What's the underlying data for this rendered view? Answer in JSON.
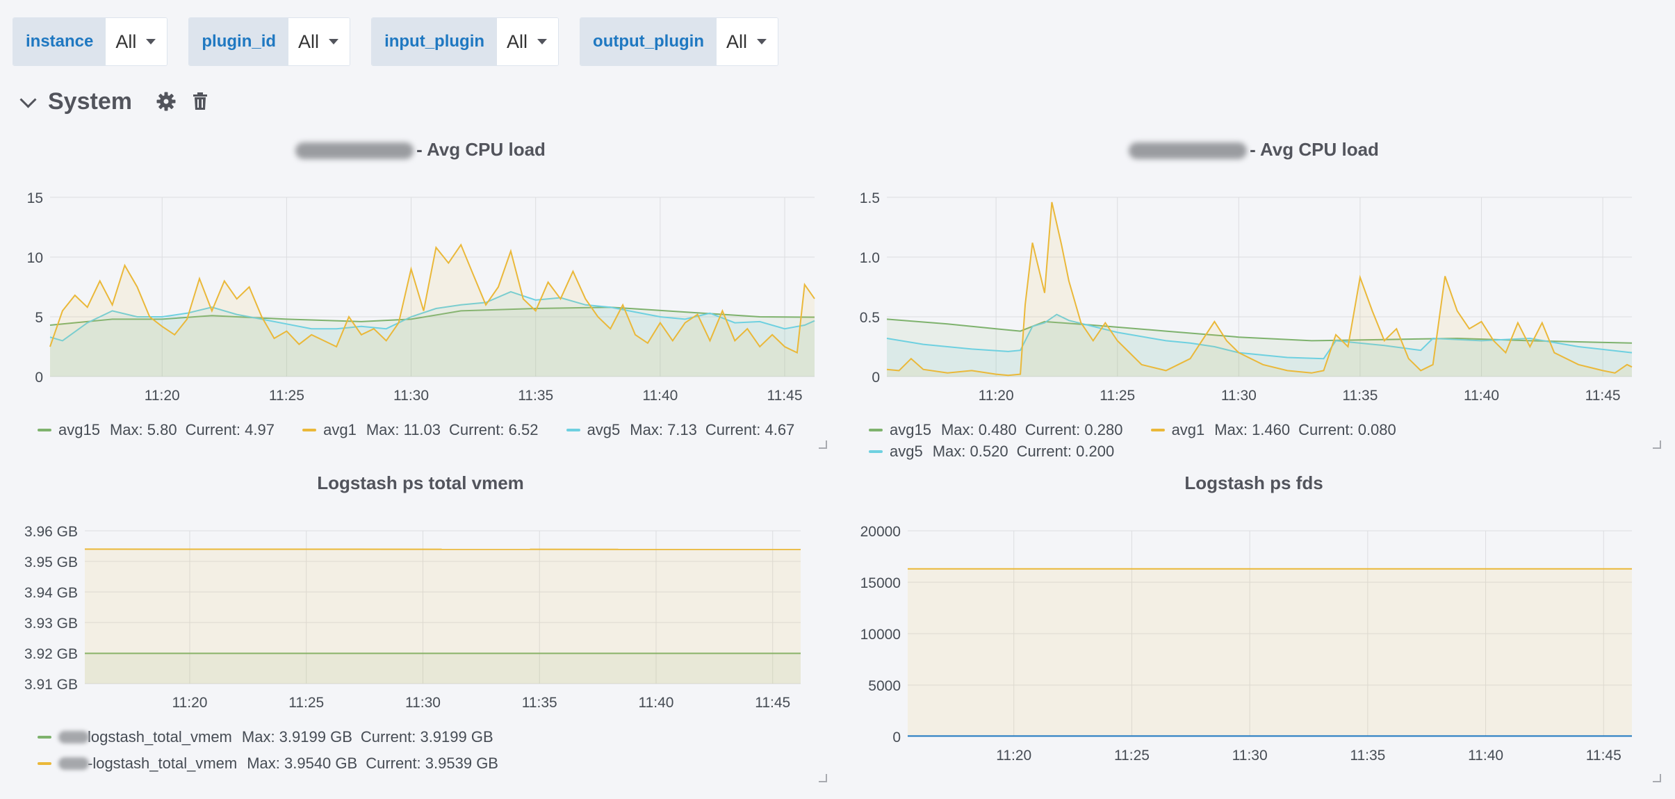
{
  "variables": [
    {
      "label": "instance",
      "value": "All"
    },
    {
      "label": "plugin_id",
      "value": "All"
    },
    {
      "label": "input_plugin",
      "value": "All"
    },
    {
      "label": "output_plugin",
      "value": "All"
    }
  ],
  "row": {
    "title": "System"
  },
  "icons": {
    "collapse": "chevron-down-icon",
    "settings": "gear-icon",
    "delete": "trash-icon"
  },
  "colors": {
    "green": "#7eb26d",
    "yellow": "#eab839",
    "cyan": "#6ed0e0",
    "blue": "#1f78c1"
  },
  "panels": [
    {
      "title": "- Avg CPU load",
      "legend": [
        {
          "name": "avg15",
          "max": "Max: 5.80",
          "current": "Current: 4.97"
        },
        {
          "name": "avg1",
          "max": "Max: 11.03",
          "current": "Current: 6.52"
        },
        {
          "name": "avg5",
          "max": "Max: 7.13",
          "current": "Current: 4.67"
        }
      ]
    },
    {
      "title": "- Avg CPU load",
      "legend": [
        {
          "name": "avg15",
          "max": "Max: 0.480",
          "current": "Current: 0.280"
        },
        {
          "name": "avg1",
          "max": "Max: 1.460",
          "current": "Current: 0.080"
        },
        {
          "name": "avg5",
          "max": "Max: 0.520",
          "current": "Current: 0.200"
        }
      ]
    },
    {
      "title": "Logstash ps total vmem",
      "legend": [
        {
          "name": "logstash_total_vmem",
          "max": "Max: 3.9199 GB",
          "current": "Current: 3.9199 GB"
        },
        {
          "name": "-logstash_total_vmem",
          "max": "Max: 3.9540 GB",
          "current": "Current: 3.9539 GB"
        }
      ]
    },
    {
      "title": "Logstash ps fds",
      "legend": []
    }
  ],
  "chart_data": [
    {
      "type": "area",
      "title": "- Avg CPU load",
      "x_ticks": [
        "11:20",
        "11:25",
        "11:30",
        "11:35",
        "11:40",
        "11:45"
      ],
      "y_ticks": [
        "0",
        "5",
        "10",
        "15"
      ],
      "ylim": [
        0,
        15
      ],
      "xlim_minutes": [
        15.5,
        46.2
      ],
      "series": [
        {
          "name": "avg15",
          "color": "#7eb26d",
          "points": [
            [
              15.5,
              4.3
            ],
            [
              18,
              4.8
            ],
            [
              20,
              4.8
            ],
            [
              22,
              5.1
            ],
            [
              25,
              4.8
            ],
            [
              28,
              4.6
            ],
            [
              30,
              4.8
            ],
            [
              32,
              5.5
            ],
            [
              35,
              5.7
            ],
            [
              38,
              5.8
            ],
            [
              41,
              5.4
            ],
            [
              44,
              5.0
            ],
            [
              46.2,
              4.97
            ]
          ]
        },
        {
          "name": "avg5",
          "color": "#6ed0e0",
          "points": [
            [
              15.5,
              3.3
            ],
            [
              16,
              3.0
            ],
            [
              17,
              4.5
            ],
            [
              18,
              5.5
            ],
            [
              19,
              5.0
            ],
            [
              20,
              5.0
            ],
            [
              21,
              5.3
            ],
            [
              22,
              5.8
            ],
            [
              23,
              5.2
            ],
            [
              24,
              4.8
            ],
            [
              25,
              4.4
            ],
            [
              26,
              4.0
            ],
            [
              27,
              4.0
            ],
            [
              28,
              4.2
            ],
            [
              29,
              4.0
            ],
            [
              30,
              5.0
            ],
            [
              31,
              5.7
            ],
            [
              32,
              6.0
            ],
            [
              33,
              6.2
            ],
            [
              34,
              7.1
            ],
            [
              35,
              6.4
            ],
            [
              36,
              6.6
            ],
            [
              37,
              6.0
            ],
            [
              38,
              5.8
            ],
            [
              39,
              5.4
            ],
            [
              40,
              5.0
            ],
            [
              41,
              4.8
            ],
            [
              42,
              5.3
            ],
            [
              43,
              4.5
            ],
            [
              44,
              4.6
            ],
            [
              45,
              4.0
            ],
            [
              45.8,
              4.3
            ],
            [
              46.2,
              4.67
            ]
          ]
        },
        {
          "name": "avg1",
          "color": "#eab839",
          "points": [
            [
              15.5,
              2.5
            ],
            [
              16,
              5.5
            ],
            [
              16.5,
              6.8
            ],
            [
              17,
              5.8
            ],
            [
              17.5,
              8.0
            ],
            [
              18,
              6.0
            ],
            [
              18.5,
              9.3
            ],
            [
              19,
              7.5
            ],
            [
              19.5,
              5.0
            ],
            [
              20,
              4.2
            ],
            [
              20.5,
              3.5
            ],
            [
              21,
              4.8
            ],
            [
              21.5,
              8.2
            ],
            [
              22,
              5.5
            ],
            [
              22.5,
              8.0
            ],
            [
              23,
              6.5
            ],
            [
              23.5,
              7.5
            ],
            [
              24,
              5.0
            ],
            [
              24.5,
              3.2
            ],
            [
              25,
              3.8
            ],
            [
              25.5,
              2.7
            ],
            [
              26,
              3.5
            ],
            [
              26.5,
              3.0
            ],
            [
              27,
              2.5
            ],
            [
              27.5,
              5.0
            ],
            [
              28,
              3.5
            ],
            [
              28.5,
              4.0
            ],
            [
              29,
              3.0
            ],
            [
              29.5,
              4.5
            ],
            [
              30,
              9.0
            ],
            [
              30.5,
              5.5
            ],
            [
              31,
              10.8
            ],
            [
              31.5,
              9.5
            ],
            [
              32,
              11.03
            ],
            [
              32.5,
              8.5
            ],
            [
              33,
              6.0
            ],
            [
              33.5,
              7.5
            ],
            [
              34,
              10.5
            ],
            [
              34.5,
              6.5
            ],
            [
              35,
              5.5
            ],
            [
              35.5,
              7.9
            ],
            [
              36,
              6.5
            ],
            [
              36.5,
              8.8
            ],
            [
              37,
              6.5
            ],
            [
              37.5,
              5.0
            ],
            [
              38,
              4.0
            ],
            [
              38.5,
              6.0
            ],
            [
              39,
              3.5
            ],
            [
              39.5,
              2.8
            ],
            [
              40,
              4.5
            ],
            [
              40.5,
              3.0
            ],
            [
              41,
              4.5
            ],
            [
              41.5,
              5.2
            ],
            [
              42,
              3.0
            ],
            [
              42.5,
              5.5
            ],
            [
              43,
              3.0
            ],
            [
              43.5,
              4.0
            ],
            [
              44,
              2.5
            ],
            [
              44.5,
              3.5
            ],
            [
              45,
              2.5
            ],
            [
              45.5,
              2.0
            ],
            [
              45.8,
              7.7
            ],
            [
              46.2,
              6.52
            ]
          ]
        }
      ]
    },
    {
      "type": "area",
      "title": "- Avg CPU load",
      "x_ticks": [
        "11:20",
        "11:25",
        "11:30",
        "11:35",
        "11:40",
        "11:45"
      ],
      "y_ticks": [
        "0",
        "0.5",
        "1.0",
        "1.5"
      ],
      "ylim": [
        0,
        1.5
      ],
      "xlim_minutes": [
        15.5,
        46.2
      ],
      "series": [
        {
          "name": "avg15",
          "color": "#7eb26d",
          "points": [
            [
              15.5,
              0.48
            ],
            [
              18,
              0.44
            ],
            [
              20,
              0.4
            ],
            [
              21,
              0.38
            ],
            [
              22,
              0.46
            ],
            [
              24,
              0.43
            ],
            [
              27,
              0.38
            ],
            [
              30,
              0.33
            ],
            [
              33,
              0.3
            ],
            [
              36,
              0.31
            ],
            [
              39,
              0.32
            ],
            [
              42,
              0.3
            ],
            [
              46.2,
              0.28
            ]
          ]
        },
        {
          "name": "avg5",
          "color": "#6ed0e0",
          "points": [
            [
              15.5,
              0.32
            ],
            [
              17,
              0.27
            ],
            [
              19,
              0.23
            ],
            [
              20.5,
              0.21
            ],
            [
              21,
              0.22
            ],
            [
              21.5,
              0.42
            ],
            [
              22,
              0.45
            ],
            [
              22.5,
              0.52
            ],
            [
              23,
              0.47
            ],
            [
              25,
              0.37
            ],
            [
              27,
              0.3
            ],
            [
              28,
              0.28
            ],
            [
              29,
              0.25
            ],
            [
              30,
              0.2
            ],
            [
              32,
              0.16
            ],
            [
              33.5,
              0.15
            ],
            [
              34,
              0.3
            ],
            [
              36,
              0.26
            ],
            [
              37.5,
              0.22
            ],
            [
              38,
              0.32
            ],
            [
              40,
              0.3
            ],
            [
              42,
              0.32
            ],
            [
              44,
              0.25
            ],
            [
              46.2,
              0.2
            ]
          ]
        },
        {
          "name": "avg1",
          "color": "#eab839",
          "points": [
            [
              15.5,
              0.06
            ],
            [
              16,
              0.05
            ],
            [
              16.5,
              0.15
            ],
            [
              17,
              0.06
            ],
            [
              18,
              0.03
            ],
            [
              19,
              0.05
            ],
            [
              20,
              0.02
            ],
            [
              20.5,
              0.01
            ],
            [
              21,
              0.02
            ],
            [
              21.2,
              0.6
            ],
            [
              21.5,
              1.12
            ],
            [
              22,
              0.7
            ],
            [
              22.3,
              1.46
            ],
            [
              22.7,
              1.1
            ],
            [
              23,
              0.8
            ],
            [
              23.5,
              0.45
            ],
            [
              24,
              0.3
            ],
            [
              24.5,
              0.45
            ],
            [
              25,
              0.3
            ],
            [
              25.5,
              0.2
            ],
            [
              26,
              0.1
            ],
            [
              27,
              0.05
            ],
            [
              28,
              0.15
            ],
            [
              29,
              0.46
            ],
            [
              29.5,
              0.3
            ],
            [
              30,
              0.2
            ],
            [
              31,
              0.1
            ],
            [
              32,
              0.05
            ],
            [
              33,
              0.03
            ],
            [
              33.5,
              0.05
            ],
            [
              34,
              0.35
            ],
            [
              34.5,
              0.25
            ],
            [
              35,
              0.83
            ],
            [
              35.5,
              0.55
            ],
            [
              36,
              0.3
            ],
            [
              36.5,
              0.4
            ],
            [
              37,
              0.15
            ],
            [
              37.5,
              0.05
            ],
            [
              38,
              0.1
            ],
            [
              38.5,
              0.84
            ],
            [
              39,
              0.55
            ],
            [
              39.5,
              0.4
            ],
            [
              40,
              0.46
            ],
            [
              40.5,
              0.3
            ],
            [
              41,
              0.2
            ],
            [
              41.5,
              0.45
            ],
            [
              42,
              0.25
            ],
            [
              42.5,
              0.45
            ],
            [
              43,
              0.2
            ],
            [
              44,
              0.1
            ],
            [
              45,
              0.05
            ],
            [
              45.5,
              0.03
            ],
            [
              46,
              0.1
            ],
            [
              46.2,
              0.08
            ]
          ]
        }
      ]
    },
    {
      "type": "area",
      "title": "Logstash ps total vmem",
      "x_ticks": [
        "11:20",
        "11:25",
        "11:30",
        "11:35",
        "11:40",
        "11:45"
      ],
      "y_ticks": [
        "3.91 GB",
        "3.92 GB",
        "3.93 GB",
        "3.94 GB",
        "3.95 GB",
        "3.96 GB"
      ],
      "ylim": [
        3.91,
        3.96
      ],
      "xlim_minutes": [
        15.5,
        46.2
      ],
      "series": [
        {
          "name": "logstash_total_vmem",
          "color": "#7eb26d",
          "points": [
            [
              15.5,
              3.9199
            ],
            [
              46.2,
              3.9199
            ]
          ]
        },
        {
          "name": "-logstash_total_vmem",
          "color": "#eab839",
          "points": [
            [
              15.5,
              3.954
            ],
            [
              46.2,
              3.9539
            ]
          ]
        }
      ]
    },
    {
      "type": "area",
      "title": "Logstash ps fds",
      "x_ticks": [
        "11:20",
        "11:25",
        "11:30",
        "11:35",
        "11:40",
        "11:45"
      ],
      "y_ticks": [
        "0",
        "5000",
        "10000",
        "15000",
        "20000"
      ],
      "ylim": [
        0,
        20000
      ],
      "xlim_minutes": [
        15.5,
        46.2
      ],
      "series": [
        {
          "color": "#eab839",
          "points": [
            [
              15.5,
              16300
            ],
            [
              46.2,
              16300
            ]
          ]
        },
        {
          "color": "#1f78c1",
          "points": [
            [
              15.5,
              40
            ],
            [
              46.2,
              40
            ]
          ]
        }
      ]
    }
  ]
}
